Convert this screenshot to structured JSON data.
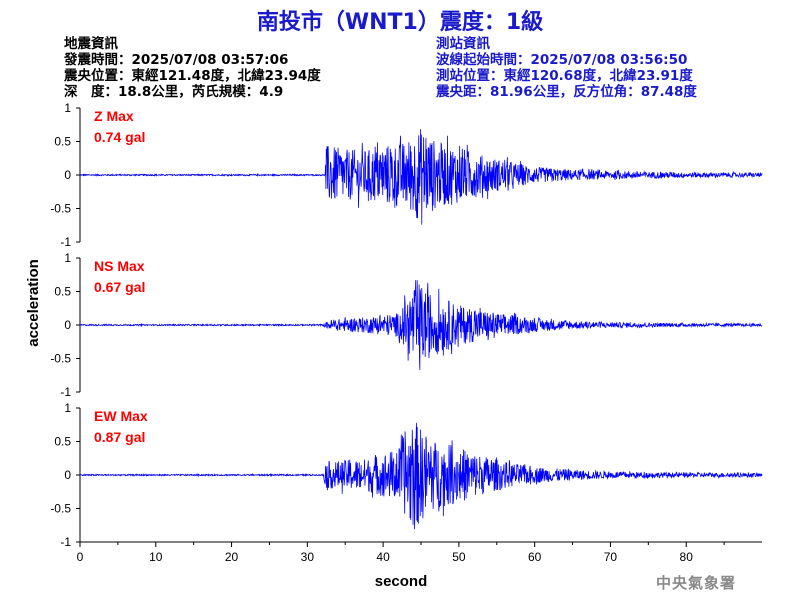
{
  "title": "南投市（WNT1）震度：1級",
  "quake_info": {
    "heading": "地震資訊",
    "time": "發震時間：2025/07/08 03:57:06",
    "epicenter": "震央位置：東經121.48度，北緯23.94度",
    "depth_mag": "深　度：18.8公里，芮氏規模：4.9"
  },
  "station_info": {
    "heading": "測站資訊",
    "wave_start": "波線起始時間：2025/07/08 03:56:50",
    "location": "測站位置：東經120.68度，北緯23.91度",
    "distance": "震央距：81.96公里，反方位角：87.48度"
  },
  "agency": "中央氣象署",
  "colors": {
    "trace": "#0000ff",
    "label": "#ff0000",
    "title": "#1a1acc",
    "axis": "#000000"
  },
  "chart_data": {
    "type": "line",
    "xlabel": "second",
    "ylabel": "acceleration",
    "xlim": [
      0,
      90
    ],
    "ylim": [
      -1,
      1
    ],
    "xticks": [
      "0",
      "10",
      "20",
      "30",
      "40",
      "50",
      "60",
      "70",
      "80"
    ],
    "yticks": [
      "1",
      "0.5",
      "0",
      "-0.5",
      "-1"
    ],
    "series": [
      {
        "name": "Z Max",
        "peak_label": "0.74 gal",
        "peak": 0.74,
        "envelope": [
          [
            0,
            0.01
          ],
          [
            32.3,
            0.01
          ],
          [
            32.5,
            0.45
          ],
          [
            35,
            0.38
          ],
          [
            38,
            0.38
          ],
          [
            40,
            0.45
          ],
          [
            43,
            0.5
          ],
          [
            45,
            0.72
          ],
          [
            47,
            0.5
          ],
          [
            50,
            0.42
          ],
          [
            53,
            0.3
          ],
          [
            56,
            0.22
          ],
          [
            60,
            0.12
          ],
          [
            65,
            0.08
          ],
          [
            70,
            0.06
          ],
          [
            80,
            0.04
          ],
          [
            90,
            0.03
          ]
        ]
      },
      {
        "name": "NS Max",
        "peak_label": "0.67 gal",
        "peak": 0.67,
        "envelope": [
          [
            0,
            0.01
          ],
          [
            32,
            0.01
          ],
          [
            33,
            0.08
          ],
          [
            38,
            0.12
          ],
          [
            42,
            0.18
          ],
          [
            43.5,
            0.48
          ],
          [
            44.5,
            0.66
          ],
          [
            46,
            0.5
          ],
          [
            48,
            0.4
          ],
          [
            50,
            0.3
          ],
          [
            55,
            0.18
          ],
          [
            60,
            0.1
          ],
          [
            65,
            0.06
          ],
          [
            70,
            0.04
          ],
          [
            80,
            0.025
          ],
          [
            90,
            0.02
          ]
        ]
      },
      {
        "name": "EW Max",
        "peak_label": "0.87 gal",
        "peak": 0.87,
        "envelope": [
          [
            0,
            0.01
          ],
          [
            32,
            0.01
          ],
          [
            32.5,
            0.2
          ],
          [
            35,
            0.22
          ],
          [
            38,
            0.25
          ],
          [
            42,
            0.4
          ],
          [
            44,
            0.86
          ],
          [
            45,
            0.7
          ],
          [
            47,
            0.5
          ],
          [
            50,
            0.42
          ],
          [
            53,
            0.3
          ],
          [
            56,
            0.2
          ],
          [
            60,
            0.12
          ],
          [
            65,
            0.08
          ],
          [
            70,
            0.05
          ],
          [
            80,
            0.035
          ],
          [
            90,
            0.03
          ]
        ]
      }
    ]
  }
}
